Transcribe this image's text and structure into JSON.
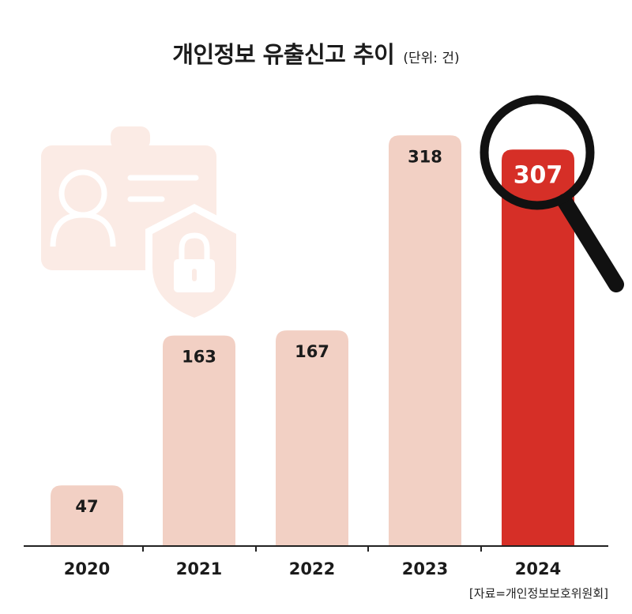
{
  "colors": {
    "bar": "#f2d0c4",
    "highlight": "#d62f27",
    "decor": "#fbebe5",
    "label": "#1b1b1b",
    "highlight_label": "#ffffff",
    "axis": "#222222"
  },
  "icons": [
    "id-card-icon",
    "shield-lock-icon",
    "magnifying-glass-icon"
  ],
  "chart_data": {
    "type": "bar",
    "title": "개인정보 유출신고 추이",
    "unit": "(단위: 건)",
    "categories": [
      "2020",
      "2021",
      "2022",
      "2023",
      "2024"
    ],
    "values": [
      47,
      163,
      167,
      318,
      307
    ],
    "value_labels": [
      "47",
      "163",
      "167",
      "318",
      "307"
    ],
    "highlight_index": 4,
    "ylim": [
      0,
      350
    ],
    "grid": false,
    "source": "[자료=개인정보보호위원회]"
  }
}
